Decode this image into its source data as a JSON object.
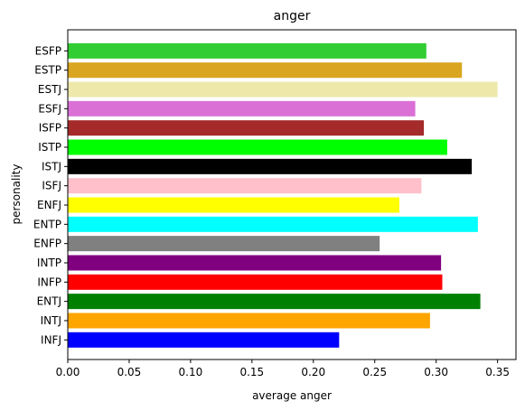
{
  "chart_data": {
    "type": "bar",
    "orientation": "horizontal",
    "title": "anger",
    "xlabel": "average anger",
    "ylabel": "personality",
    "xlim": [
      0,
      0.365
    ],
    "xticks": [
      "0.00",
      "0.05",
      "0.10",
      "0.15",
      "0.20",
      "0.25",
      "0.30",
      "0.35"
    ],
    "xtick_values": [
      0,
      0.05,
      0.1,
      0.15,
      0.2,
      0.25,
      0.3,
      0.35
    ],
    "grid": false,
    "categories": [
      "INFJ",
      "INTJ",
      "ENTJ",
      "INFP",
      "INTP",
      "ENFP",
      "ENTP",
      "ENFJ",
      "ISFJ",
      "ISTJ",
      "ISTP",
      "ISFP",
      "ESFJ",
      "ESTJ",
      "ESTP",
      "ESFP"
    ],
    "values": [
      0.221,
      0.295,
      0.336,
      0.305,
      0.304,
      0.254,
      0.334,
      0.27,
      0.288,
      0.329,
      0.309,
      0.29,
      0.283,
      0.35,
      0.321,
      0.292
    ],
    "colors": [
      "#0000ff",
      "#ffa500",
      "#008000",
      "#ff0000",
      "#800080",
      "#808080",
      "#00ffff",
      "#ffff00",
      "#ffc0cb",
      "#000000",
      "#00ff00",
      "#a52a2a",
      "#da70d6",
      "#eee8aa",
      "#daa520",
      "#32cd32"
    ]
  }
}
